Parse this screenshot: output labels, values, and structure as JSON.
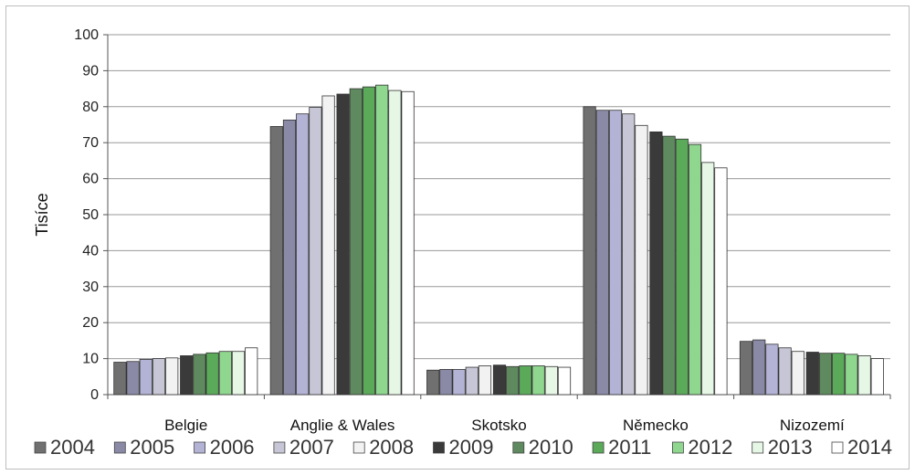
{
  "chart_data": {
    "type": "bar",
    "title": "",
    "xlabel": "",
    "ylabel": "Tisíce",
    "ylim": [
      0,
      100
    ],
    "yticks": [
      0,
      10,
      20,
      30,
      40,
      50,
      60,
      70,
      80,
      90,
      100
    ],
    "grid": true,
    "legend_position": "bottom",
    "categories": [
      "Belgie",
      "Anglie & Wales",
      "Skotsko",
      "Německo",
      "Nizozemí"
    ],
    "series": [
      {
        "name": "2004",
        "color": "#707070",
        "values": [
          9.0,
          74.5,
          6.8,
          80.0,
          14.8
        ]
      },
      {
        "name": "2005",
        "color": "#8a8aa6",
        "values": [
          9.2,
          76.3,
          7.0,
          79.0,
          15.2
        ]
      },
      {
        "name": "2006",
        "color": "#b3b3d6",
        "values": [
          9.8,
          78.0,
          7.0,
          79.0,
          14.0
        ]
      },
      {
        "name": "2007",
        "color": "#c6c6d6",
        "values": [
          10.0,
          79.8,
          7.6,
          78.0,
          13.0
        ]
      },
      {
        "name": "2008",
        "color": "#f2f2f2",
        "values": [
          10.2,
          83.0,
          8.0,
          74.8,
          12.0
        ]
      },
      {
        "name": "2009",
        "color": "#3a3a3a",
        "values": [
          10.8,
          83.5,
          8.2,
          73.0,
          11.8
        ]
      },
      {
        "name": "2010",
        "color": "#5f8a5f",
        "values": [
          11.2,
          85.0,
          7.8,
          71.8,
          11.5
        ]
      },
      {
        "name": "2011",
        "color": "#5aaa5a",
        "values": [
          11.6,
          85.5,
          8.0,
          71.0,
          11.5
        ]
      },
      {
        "name": "2012",
        "color": "#8fd68f",
        "values": [
          12.0,
          86.0,
          8.0,
          69.5,
          11.2
        ]
      },
      {
        "name": "2013",
        "color": "#e6f7e6",
        "values": [
          12.0,
          84.5,
          7.8,
          64.5,
          10.8
        ]
      },
      {
        "name": "2014",
        "color": "#ffffff",
        "values": [
          13.0,
          84.2,
          7.6,
          63.0,
          10.0
        ]
      }
    ]
  }
}
